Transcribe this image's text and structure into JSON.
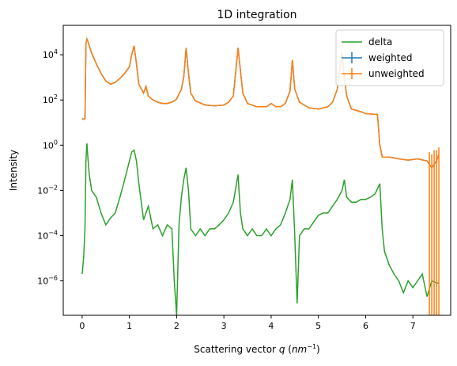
{
  "chart_data": {
    "type": "line",
    "title": "1D integration",
    "xlabel": "Scattering vector q (nm^-1)",
    "ylabel": "Intensity",
    "xlim": [
      -0.4,
      7.8
    ],
    "ylim": [
      3e-08,
      200000.0
    ],
    "yscale": "log",
    "grid": false,
    "legend_position": "top-right",
    "x_ticks": [
      {
        "value": 0,
        "label": "0"
      },
      {
        "value": 1,
        "label": "1"
      },
      {
        "value": 2,
        "label": "2"
      },
      {
        "value": 3,
        "label": "3"
      },
      {
        "value": 4,
        "label": "4"
      },
      {
        "value": 5,
        "label": "5"
      },
      {
        "value": 6,
        "label": "6"
      },
      {
        "value": 7,
        "label": "7"
      }
    ],
    "y_ticks": [
      {
        "value": 1e-06,
        "base": "10",
        "exp": "−6"
      },
      {
        "value": 0.0001,
        "base": "10",
        "exp": "−4"
      },
      {
        "value": 0.01,
        "base": "10",
        "exp": "−2"
      },
      {
        "value": 1.0,
        "base": "10",
        "exp": "0"
      },
      {
        "value": 100.0,
        "base": "10",
        "exp": "2"
      },
      {
        "value": 10000.0,
        "base": "10",
        "exp": "4"
      }
    ],
    "series": [
      {
        "name": "delta",
        "color": "#2ca02c",
        "marker": "line",
        "x": [
          0.0,
          0.03,
          0.06,
          0.08,
          0.1,
          0.12,
          0.15,
          0.2,
          0.3,
          0.4,
          0.5,
          0.6,
          0.7,
          0.8,
          0.9,
          1.0,
          1.05,
          1.1,
          1.15,
          1.2,
          1.3,
          1.4,
          1.5,
          1.6,
          1.7,
          1.8,
          1.9,
          1.95,
          2.0,
          2.05,
          2.1,
          2.15,
          2.2,
          2.25,
          2.3,
          2.4,
          2.5,
          2.6,
          2.7,
          2.8,
          2.9,
          3.0,
          3.1,
          3.2,
          3.3,
          3.35,
          3.4,
          3.5,
          3.6,
          3.7,
          3.8,
          3.9,
          4.0,
          4.1,
          4.2,
          4.3,
          4.4,
          4.45,
          4.5,
          4.55,
          4.6,
          4.7,
          4.8,
          4.9,
          5.0,
          5.1,
          5.2,
          5.3,
          5.4,
          5.5,
          5.55,
          5.6,
          5.7,
          5.8,
          5.9,
          6.0,
          6.1,
          6.2,
          6.3,
          6.35,
          6.4,
          6.5,
          6.6,
          6.7,
          6.8,
          6.9,
          7.0,
          7.1,
          7.2,
          7.3,
          7.4,
          7.5,
          7.55
        ],
        "y": [
          2e-06,
          1e-05,
          0.0002,
          0.2,
          1.2,
          0.3,
          0.05,
          0.01,
          0.005,
          0.001,
          0.0003,
          0.0006,
          0.001,
          0.005,
          0.03,
          0.2,
          0.5,
          0.6,
          0.2,
          0.02,
          0.0005,
          0.002,
          0.0002,
          0.0003,
          0.0001,
          0.0003,
          0.0002,
          1e-06,
          1e-08,
          0.0003,
          0.005,
          0.03,
          0.1,
          0.01,
          0.0002,
          0.0001,
          0.0002,
          0.0001,
          0.0002,
          0.0002,
          0.0003,
          0.0005,
          0.001,
          0.003,
          0.05,
          0.001,
          0.0002,
          0.0001,
          0.0002,
          0.0001,
          0.0001,
          0.0002,
          0.0001,
          0.0002,
          0.0003,
          0.001,
          0.004,
          0.03,
          0.0001,
          1e-07,
          0.0001,
          0.0002,
          0.0002,
          0.0004,
          0.0008,
          0.001,
          0.001,
          0.002,
          0.004,
          0.01,
          0.03,
          0.005,
          0.003,
          0.003,
          0.004,
          0.004,
          0.005,
          0.007,
          0.02,
          0.0002,
          2e-05,
          5e-06,
          2e-06,
          1e-06,
          3e-07,
          1e-06,
          5e-07,
          1e-06,
          2e-06,
          2e-07,
          1e-06,
          8e-07,
          8e-07
        ]
      },
      {
        "name": "weighted",
        "color": "#1f77b4",
        "marker": "errorbar",
        "x": [
          0.0,
          0.03,
          0.06,
          0.08,
          0.1,
          0.12,
          0.15,
          0.2,
          0.3,
          0.4,
          0.5,
          0.6,
          0.7,
          0.8,
          0.9,
          1.0,
          1.05,
          1.1,
          1.15,
          1.2,
          1.3,
          1.35,
          1.4,
          1.5,
          1.6,
          1.7,
          1.8,
          1.9,
          2.0,
          2.1,
          2.15,
          2.2,
          2.25,
          2.3,
          2.4,
          2.6,
          2.8,
          3.0,
          3.1,
          3.2,
          3.3,
          3.35,
          3.4,
          3.5,
          3.7,
          3.9,
          4.0,
          4.05,
          4.1,
          4.2,
          4.3,
          4.4,
          4.45,
          4.5,
          4.6,
          4.8,
          5.0,
          5.2,
          5.3,
          5.4,
          5.5,
          5.55,
          5.6,
          5.7,
          5.9,
          6.0,
          6.2,
          6.25,
          6.3,
          6.35,
          6.4,
          6.5,
          6.7,
          6.9,
          7.1,
          7.3,
          7.4,
          7.5,
          7.55
        ],
        "y": [
          15,
          14,
          15,
          30000,
          50000,
          40000,
          25000,
          12000,
          4000,
          1500,
          700,
          500,
          600,
          900,
          1500,
          3000,
          10000,
          25000,
          4000,
          500,
          200,
          400,
          150,
          100,
          80,
          70,
          70,
          80,
          110,
          300,
          1000,
          20000,
          1500,
          200,
          90,
          60,
          55,
          60,
          80,
          150,
          20000,
          2000,
          200,
          70,
          50,
          50,
          70,
          60,
          50,
          50,
          70,
          250,
          6000,
          300,
          80,
          45,
          40,
          50,
          80,
          300,
          12000,
          1000,
          150,
          40,
          30,
          25,
          23,
          23,
          1,
          0.3,
          0.3,
          0.3,
          0.25,
          0.22,
          0.25,
          0.2,
          0.1,
          0.2,
          0.4
        ]
      },
      {
        "name": "unweighted",
        "color": "#ff7f0e",
        "marker": "errorbar",
        "x": [
          0.0,
          0.03,
          0.06,
          0.08,
          0.1,
          0.12,
          0.15,
          0.2,
          0.3,
          0.4,
          0.5,
          0.6,
          0.7,
          0.8,
          0.9,
          1.0,
          1.05,
          1.1,
          1.15,
          1.2,
          1.3,
          1.35,
          1.4,
          1.5,
          1.6,
          1.7,
          1.8,
          1.9,
          2.0,
          2.1,
          2.15,
          2.2,
          2.25,
          2.3,
          2.4,
          2.6,
          2.8,
          3.0,
          3.1,
          3.2,
          3.3,
          3.35,
          3.4,
          3.5,
          3.7,
          3.9,
          4.0,
          4.05,
          4.1,
          4.2,
          4.3,
          4.4,
          4.45,
          4.5,
          4.6,
          4.8,
          5.0,
          5.2,
          5.3,
          5.4,
          5.5,
          5.55,
          5.6,
          5.7,
          5.9,
          6.0,
          6.2,
          6.25,
          6.3,
          6.35,
          6.4,
          6.5,
          6.7,
          6.9,
          7.1,
          7.3,
          7.4,
          7.5,
          7.55
        ],
        "y": [
          15,
          14,
          15,
          30000,
          50000,
          40000,
          25000,
          12000,
          4000,
          1500,
          700,
          500,
          600,
          900,
          1500,
          3000,
          10000,
          25000,
          4000,
          500,
          200,
          400,
          150,
          100,
          80,
          70,
          70,
          80,
          110,
          300,
          1000,
          20000,
          1500,
          200,
          90,
          60,
          55,
          60,
          80,
          150,
          20000,
          2000,
          200,
          70,
          50,
          50,
          70,
          60,
          50,
          50,
          70,
          250,
          6000,
          300,
          80,
          45,
          40,
          50,
          80,
          300,
          12000,
          1000,
          150,
          40,
          30,
          25,
          23,
          23,
          1,
          0.3,
          0.3,
          0.3,
          0.25,
          0.22,
          0.25,
          0.2,
          0.1,
          0.2,
          0.4
        ],
        "error_bars_at_x": [
          7.35,
          7.4,
          7.45,
          7.5,
          7.55
        ],
        "error_bars_low": [
          3e-08,
          3e-08,
          3e-08,
          3e-08,
          3e-08
        ],
        "error_bars_high": [
          0.5,
          0.4,
          0.6,
          0.6,
          0.8
        ]
      }
    ]
  }
}
